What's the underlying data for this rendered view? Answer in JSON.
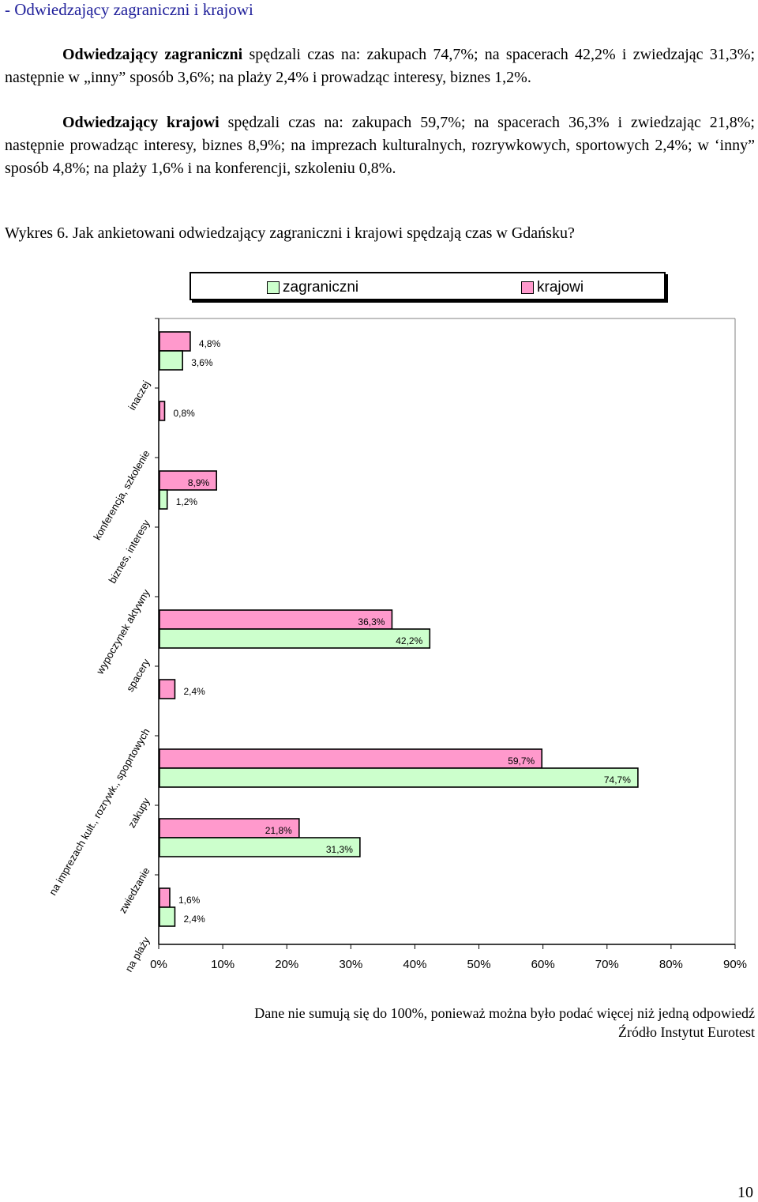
{
  "heading": "- Odwiedzający zagraniczni i krajowi",
  "paragraph1": {
    "bold_prefix": "Odwiedzający zagraniczni",
    "text": " spędzali czas na: zakupach 74,7%; na spacerach 42,2% i zwiedzając 31,3%; następnie w „inny” sposób 3,6%; na plaży 2,4% i prowadząc interesy, biznes 1,2%."
  },
  "paragraph2": {
    "bold_prefix": "Odwiedzający krajowi",
    "text": " spędzali czas na: zakupach 59,7%; na spacerach 36,3% i zwiedzając 21,8%; następnie prowadząc interesy, biznes 8,9%; na imprezach kulturalnych, rozrywkowych, sportowych 2,4%; w ‘inny” sposób 4,8%; na plaży 1,6% i na konferencji, szkoleniu 0,8%."
  },
  "caption": "Wykres 6. Jak ankietowani odwiedzający zagraniczni i krajowi spędzają czas w Gdańsku?",
  "chart_data": {
    "type": "bar",
    "orientation": "horizontal",
    "categories": [
      "inaczej",
      "konferencja, szkolenie",
      "biznes, interesy",
      "wypoczynek aktywny",
      "spacery",
      "na imprezach kult., rozrywk., spoprtowych",
      "zakupy",
      "zwiedzanie",
      "na plaży"
    ],
    "series": [
      {
        "name": "krajowi",
        "color": "#ff99cc",
        "values": [
          4.8,
          0.8,
          8.9,
          null,
          36.3,
          2.4,
          59.7,
          21.8,
          1.6
        ],
        "labels": [
          "4,8%",
          "0,8%",
          "8,9%",
          "",
          "36,3%",
          "2,4%",
          "59,7%",
          "21,8%",
          "1,6%"
        ]
      },
      {
        "name": "zagraniczni",
        "color": "#ccffcc",
        "values": [
          3.6,
          null,
          1.2,
          null,
          42.2,
          null,
          74.7,
          31.3,
          2.4
        ],
        "labels": [
          "3,6%",
          "",
          "1,2%",
          "",
          "42,2%",
          "",
          "74,7%",
          "31,3%",
          "2,4%"
        ]
      }
    ],
    "xlim": [
      0,
      90
    ],
    "xticks": [
      "0%",
      "10%",
      "20%",
      "30%",
      "40%",
      "50%",
      "60%",
      "70%",
      "80%",
      "90%"
    ],
    "legend": [
      "zagraniczni",
      "krajowi"
    ],
    "legend_position": "top"
  },
  "notes": {
    "line1": "Dane nie sumują się do 100%, ponieważ można było podać więcej niż jedną odpowiedź",
    "line2": "Źródło Instytut Eurotest"
  },
  "page_number": "10"
}
